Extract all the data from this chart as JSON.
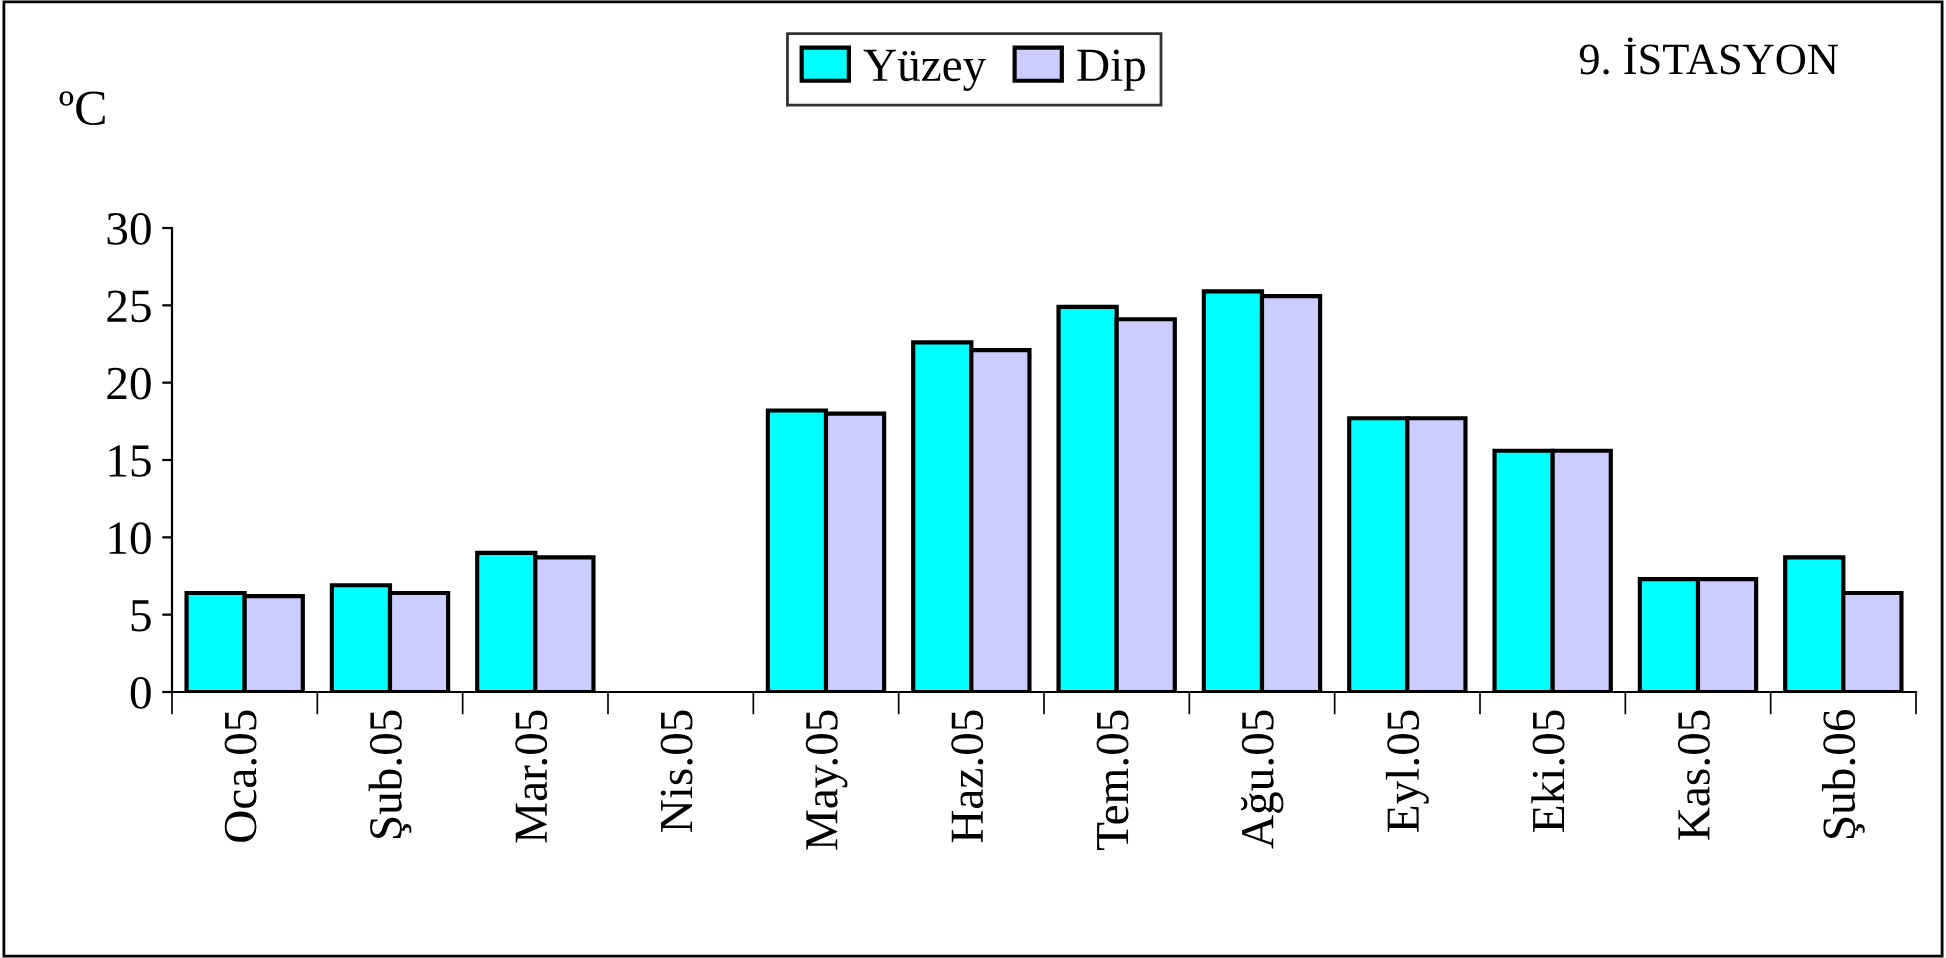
{
  "chart_data": {
    "type": "bar",
    "title": "9. İSTASYON",
    "ylabel": "ºC",
    "categories": [
      "Oca.05",
      "Şub.05",
      "Mar.05",
      "Nis.05",
      "May.05",
      "Haz.05",
      "Tem.05",
      "Ağu.05",
      "Eyl.05",
      "Eki.05",
      "Kas.05",
      "Şub.06"
    ],
    "series": [
      {
        "name": "Yüzey",
        "color": "#00ffff",
        "values": [
          6.4,
          6.9,
          9.0,
          null,
          18.2,
          22.6,
          24.9,
          25.9,
          17.7,
          15.6,
          7.3,
          8.7
        ]
      },
      {
        "name": "Dip",
        "color": "#ccccff",
        "values": [
          6.2,
          6.4,
          8.7,
          null,
          18.0,
          22.1,
          24.1,
          25.6,
          17.7,
          15.6,
          7.3,
          6.4
        ]
      }
    ],
    "ylim": [
      0,
      30
    ],
    "yticks": [
      0,
      5,
      10,
      15,
      20,
      25,
      30
    ],
    "grid": false,
    "legend": "top"
  }
}
